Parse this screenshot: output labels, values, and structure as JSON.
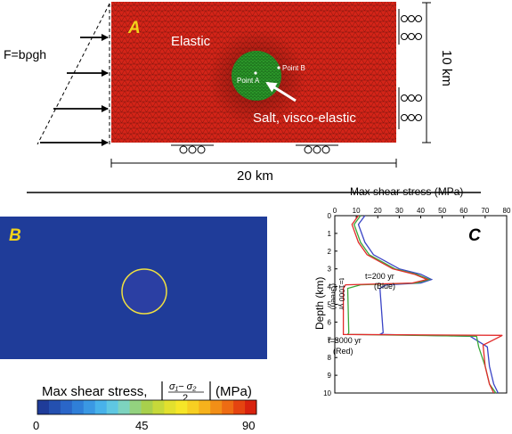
{
  "panel_a": {
    "label": "A",
    "force_label": "F=bρgh",
    "elastic_label": "Elastic",
    "salt_label": "Salt, visco-elastic",
    "point_a_label": "Point A",
    "point_b_label": "Point B",
    "width_label": "20 km",
    "height_label": "10 km",
    "colors": {
      "mesh": "#d42418",
      "salt": "#2c9a2a"
    }
  },
  "panel_b": {
    "label": "B",
    "colorbar": {
      "title": "Max shear stress,",
      "unit": "(MPa)",
      "formula_numerator": "σ₁− σ₂",
      "formula_denominator": "2",
      "ticks": [
        "0",
        "45",
        "90"
      ],
      "min": 0,
      "max": 90,
      "colors": [
        "#1f3c99",
        "#2450b0",
        "#2a66c8",
        "#2f7fd8",
        "#3a98e3",
        "#48b2ea",
        "#5fc7e2",
        "#7dd3bf",
        "#93d27f",
        "#a8d04c",
        "#c6d93a",
        "#e2e02e",
        "#f6e628",
        "#f7cf22",
        "#f6b21c",
        "#f28f17",
        "#ee6c13",
        "#e54410",
        "#d8220e"
      ]
    }
  },
  "panel_c": {
    "label": "C",
    "x_title": "Max shear stress (MPa)",
    "y_title": "Depth (km)",
    "x_ticks": [
      "0",
      "10",
      "20",
      "30",
      "40",
      "50",
      "60",
      "70",
      "80"
    ],
    "y_ticks": [
      "0",
      "1",
      "2",
      "3",
      "4",
      "5",
      "6",
      "7",
      "8",
      "9",
      "10"
    ],
    "annotations": {
      "blue_l1": "t=200 yr",
      "blue_l2": "(Blue)",
      "green_l1": "t=1000 yr",
      "green_l2": "(Green)",
      "red_l1": "t=3000 yr",
      "red_l2": "(Red)"
    }
  },
  "chart_data": {
    "type": "line",
    "title": "",
    "xlabel": "Max shear stress (MPa)",
    "ylabel": "Depth (km)",
    "xlim": [
      0,
      80
    ],
    "ylim": [
      10,
      0
    ],
    "x_axis_position": "top",
    "grid": false,
    "series": [
      {
        "name": "Blue",
        "color": "#3a44c6",
        "points": [
          [
            14,
            0
          ],
          [
            11,
            0.5
          ],
          [
            14,
            1.5
          ],
          [
            18,
            2.2
          ],
          [
            30,
            3.0
          ],
          [
            40,
            3.3
          ],
          [
            45,
            3.6
          ],
          [
            40,
            3.8
          ],
          [
            24,
            3.9
          ],
          [
            21,
            4.1
          ],
          [
            22.5,
            6.6
          ],
          [
            21,
            6.7
          ],
          [
            63,
            6.8
          ],
          [
            71,
            7.4
          ],
          [
            72,
            8.5
          ],
          [
            74,
            9.5
          ],
          [
            76,
            10
          ]
        ]
      },
      {
        "name": "Green",
        "color": "#3aa83a",
        "points": [
          [
            12,
            0
          ],
          [
            9,
            0.5
          ],
          [
            12,
            1.5
          ],
          [
            16,
            2.2
          ],
          [
            28,
            3.0
          ],
          [
            38,
            3.3
          ],
          [
            44,
            3.6
          ],
          [
            38,
            3.8
          ],
          [
            12,
            3.9
          ],
          [
            6,
            4.1
          ],
          [
            6.5,
            6.6
          ],
          [
            6,
            6.7
          ],
          [
            66,
            6.8
          ],
          [
            67,
            7.4
          ],
          [
            70,
            8.5
          ],
          [
            72,
            9.5
          ],
          [
            75,
            10
          ]
        ]
      },
      {
        "name": "Red",
        "color": "#e22b2b",
        "points": [
          [
            11,
            0
          ],
          [
            8,
            0.5
          ],
          [
            11,
            1.5
          ],
          [
            15,
            2.2
          ],
          [
            27,
            3.0
          ],
          [
            37,
            3.3
          ],
          [
            43,
            3.6
          ],
          [
            36,
            3.8
          ],
          [
            5,
            3.9
          ],
          [
            4,
            4.1
          ],
          [
            4,
            6.6
          ],
          [
            4,
            6.7
          ],
          [
            78,
            6.75
          ],
          [
            69,
            7.3
          ],
          [
            70,
            8.5
          ],
          [
            72,
            9.5
          ],
          [
            74,
            10
          ]
        ]
      }
    ]
  }
}
